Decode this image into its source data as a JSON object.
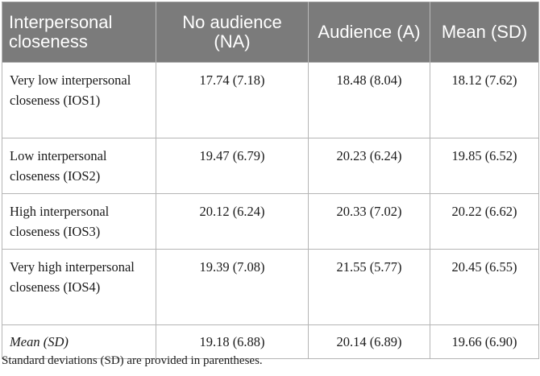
{
  "table": {
    "headers": [
      "Interpersonal closeness",
      "No audience (NA)",
      "Audience (A)",
      "Mean (SD)"
    ],
    "rows": [
      {
        "label": "Very low interpersonal closeness (IOS1)",
        "values": [
          "17.74 (7.18)",
          "18.48 (8.04)",
          "18.12 (7.62)"
        ]
      },
      {
        "label": "Low interpersonal closeness (IOS2)",
        "values": [
          "19.47 (6.79)",
          "20.23 (6.24)",
          "19.85 (6.52)"
        ]
      },
      {
        "label": "High interpersonal closeness (IOS3)",
        "values": [
          "20.12 (6.24)",
          "20.33 (7.02)",
          "20.22 (6.62)"
        ]
      },
      {
        "label": "Very high interpersonal closeness (IOS4)",
        "values": [
          "19.39 (7.08)",
          "21.55 (5.77)",
          "20.45 (6.55)"
        ]
      },
      {
        "label": "Mean (SD)",
        "values": [
          "19.18 (6.88)",
          "20.14 (6.89)",
          "19.66 (6.90)"
        ]
      }
    ]
  },
  "footnote": "Standard deviations (SD) are provided in parentheses."
}
